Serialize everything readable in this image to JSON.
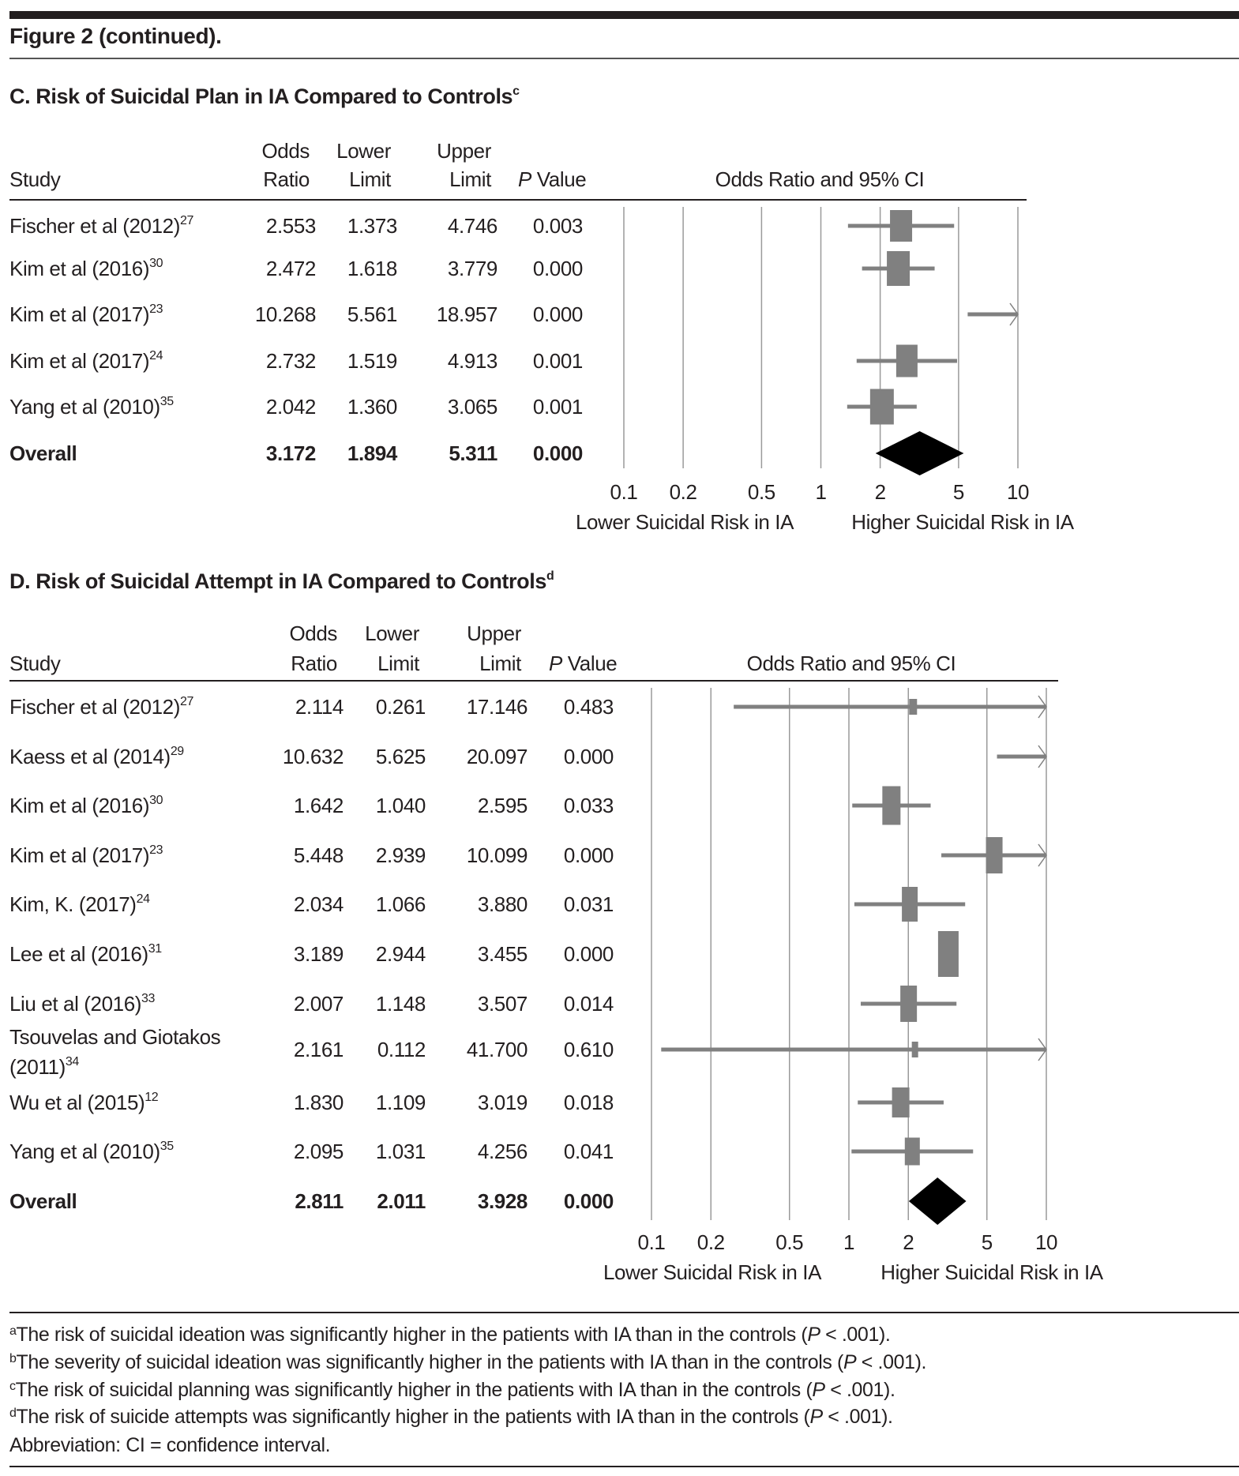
{
  "figure_title": "Figure 2 (continued).",
  "headers": {
    "study": "Study",
    "or_line1": "Odds",
    "or_line2": "Ratio",
    "lower_line1": "Lower",
    "lower_line2": "Limit",
    "upper_line1": "Upper",
    "upper_line2": "Limit",
    "p_italic": "P",
    "p_rest": " Value",
    "plot_header": "Odds Ratio and 95% CI"
  },
  "colors": {
    "marker": "#808080",
    "diamond": "#000000",
    "grid": "#9a9a9a",
    "text": "#231f20"
  },
  "chart_data": [
    {
      "type": "forest",
      "title": "C. Risk of Suicidal Plan in IA Compared to Controls",
      "title_sup": "c",
      "x_scale": "log",
      "xlim": [
        0.1,
        10
      ],
      "x_ticks": [
        "0.1",
        "0.2",
        "0.5",
        "1",
        "2",
        "5",
        "10"
      ],
      "x_tick_values": [
        0.1,
        0.2,
        0.5,
        1,
        2,
        5,
        10
      ],
      "axis_left_label": "Lower Suicidal Risk in IA",
      "axis_right_label": "Higher Suicidal Risk in IA",
      "grid": true,
      "rows": [
        {
          "study": "Fischer et al (2012)",
          "ref": "27",
          "or": "2.553",
          "lower": "1.373",
          "upper": "4.746",
          "p": "0.003"
        },
        {
          "study": "Kim et al (2016)",
          "ref": "30",
          "or": "2.472",
          "lower": "1.618",
          "upper": "3.779",
          "p": "0.000"
        },
        {
          "study": "Kim et al (2017)",
          "ref": "23",
          "or": "10.268",
          "lower": "5.561",
          "upper": "18.957",
          "p": "0.000"
        },
        {
          "study": "Kim et al (2017)",
          "ref": "24",
          "or": "2.732",
          "lower": "1.519",
          "upper": "4.913",
          "p": "0.001"
        },
        {
          "study": "Yang et al (2010)",
          "ref": "35",
          "or": "2.042",
          "lower": "1.360",
          "upper": "3.065",
          "p": "0.001"
        }
      ],
      "overall": {
        "label": "Overall",
        "or": "3.172",
        "lower": "1.894",
        "upper": "5.311",
        "p": "0.000"
      }
    },
    {
      "type": "forest",
      "title": "D. Risk of Suicidal Attempt in IA Compared to Controls",
      "title_sup": "d",
      "x_scale": "log",
      "xlim": [
        0.1,
        10
      ],
      "x_ticks": [
        "0.1",
        "0.2",
        "0.5",
        "1",
        "2",
        "5",
        "10"
      ],
      "x_tick_values": [
        0.1,
        0.2,
        0.5,
        1,
        2,
        5,
        10
      ],
      "axis_left_label": "Lower Suicidal Risk in IA",
      "axis_right_label": "Higher Suicidal Risk in IA",
      "grid": true,
      "rows": [
        {
          "study": "Fischer et al (2012)",
          "ref": "27",
          "or": "2.114",
          "lower": "0.261",
          "upper": "17.146",
          "p": "0.483"
        },
        {
          "study": "Kaess et al (2014)",
          "ref": "29",
          "or": "10.632",
          "lower": "5.625",
          "upper": "20.097",
          "p": "0.000"
        },
        {
          "study": "Kim et al (2016)",
          "ref": "30",
          "or": "1.642",
          "lower": "1.040",
          "upper": "2.595",
          "p": "0.033"
        },
        {
          "study": "Kim et al (2017)",
          "ref": "23",
          "or": "5.448",
          "lower": "2.939",
          "upper": "10.099",
          "p": "0.000"
        },
        {
          "study": "Kim, K. (2017)",
          "ref": "24",
          "or": "2.034",
          "lower": "1.066",
          "upper": "3.880",
          "p": "0.031"
        },
        {
          "study": "Lee et al (2016)",
          "ref": "31",
          "or": "3.189",
          "lower": "2.944",
          "upper": "3.455",
          "p": "0.000"
        },
        {
          "study": "Liu et al (2016)",
          "ref": "33",
          "or": "2.007",
          "lower": "1.148",
          "upper": "3.507",
          "p": "0.014"
        },
        {
          "study": "Tsouvelas and Giotakos",
          "study_line2": "(2011)",
          "ref": "34",
          "or": "2.161",
          "lower": "0.112",
          "upper": "41.700",
          "p": "0.610"
        },
        {
          "study": "Wu et al (2015)",
          "ref": "12",
          "or": "1.830",
          "lower": "1.109",
          "upper": "3.019",
          "p": "0.018"
        },
        {
          "study": "Yang et al (2010)",
          "ref": "35",
          "or": "2.095",
          "lower": "1.031",
          "upper": "4.256",
          "p": "0.041"
        }
      ],
      "overall": {
        "label": "Overall",
        "or": "2.811",
        "lower": "2.011",
        "upper": "3.928",
        "p": "0.000"
      }
    }
  ],
  "footnotes": [
    {
      "sup": "a",
      "text": "The risk of suicidal ideation was significantly higher in the patients with IA than in the controls (",
      "p": "P",
      "tail": " < .001)."
    },
    {
      "sup": "b",
      "text": "The severity of suicidal ideation was significantly higher in the patients with IA than in the controls (",
      "p": "P",
      "tail": " < .001)."
    },
    {
      "sup": "c",
      "text": "The risk of suicidal planning was significantly higher in the patients with IA than in the controls (",
      "p": "P",
      "tail": " < .001)."
    },
    {
      "sup": "d",
      "text": "The risk of suicide attempts was significantly higher in the patients with IA than in the controls (",
      "p": "P",
      "tail": " < .001)."
    }
  ],
  "abbreviation": "Abbreviation: CI = confidence interval."
}
